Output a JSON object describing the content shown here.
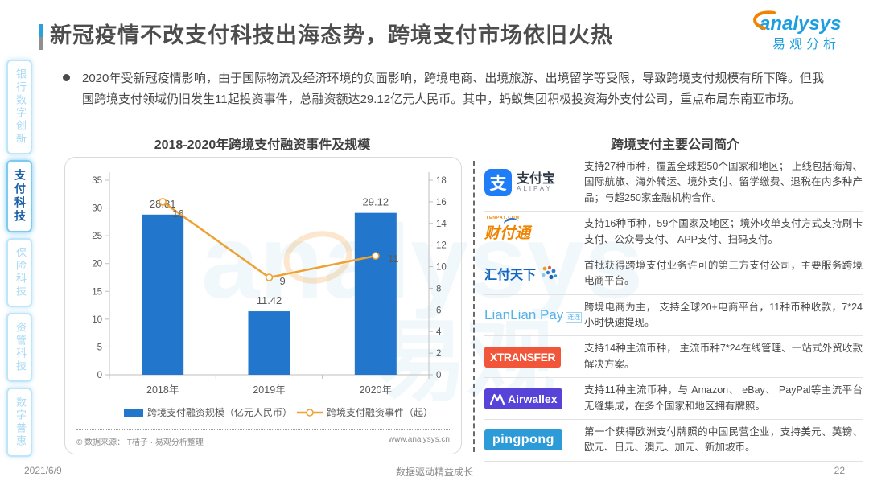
{
  "header": {
    "title": "新冠疫情不改支付科技出海态势，跨境支付市场依旧火热"
  },
  "brand": {
    "logo_text": "analysys",
    "logo_subtext": "易观分析"
  },
  "sidebar": {
    "items": [
      {
        "label": "银行数字创新",
        "active": false
      },
      {
        "label": "支付科技",
        "active": true
      },
      {
        "label": "保险科技",
        "active": false
      },
      {
        "label": "资管科技",
        "active": false
      },
      {
        "label": "数字普惠",
        "active": false
      }
    ]
  },
  "summary": {
    "bullet": "2020年受新冠疫情影响，由于国际物流及经济环境的负面影响，跨境电商、出境旅游、出境留学等受限，导致跨境支付规模有所下降。但我国跨境支付领域仍旧发生11起投资事件，总融资额达29.12亿元人民币。其中，蚂蚁集团积极投资海外支付公司，重点布局东南亚市场。"
  },
  "chart_data": {
    "type": "bar",
    "subtype": "combo bar+line, dual axis",
    "title": "2018-2020年跨境支付融资事件及规模",
    "categories": [
      "2018年",
      "2019年",
      "2020年"
    ],
    "series": [
      {
        "name": "跨境支付融资规模（亿元人民币）",
        "type": "bar",
        "axis": "left",
        "values": [
          28.81,
          11.42,
          29.12
        ],
        "color": "#2277cc"
      },
      {
        "name": "跨境支付融资事件（起）",
        "type": "line",
        "axis": "right",
        "values": [
          16,
          9,
          11
        ],
        "color": "#efa132"
      }
    ],
    "left_axis": {
      "min": 0,
      "max": 35,
      "step": 5
    },
    "right_axis": {
      "min": 0,
      "max": 18,
      "step": 2
    },
    "grid": false,
    "legend_position": "bottom",
    "source": "© 数据来源：IT桔子 · 易观分析整理",
    "source_url": "www.analysys.cn"
  },
  "companies": {
    "title": "跨境支付主要公司简介",
    "rows": [
      {
        "logo_cn": "支付宝",
        "logo_en": "ALIPAY",
        "glyph": "支",
        "desc": "支持27种币种，覆盖全球超50个国家和地区； 上线包括海淘、国际航旅、海外转运、境外支付、留学缴费、退税在内多种产品；与超250家金融机构合作。"
      },
      {
        "logo_text": "财付通",
        "logo_sub": "TENPAY.COM",
        "desc": "支持16种币种，59个国家及地区；境外收单支付方式支持刷卡支付、公众号支付、 APP支付、扫码支付。"
      },
      {
        "logo_text": "汇付天下",
        "desc": "首批获得跨境支付业务许可的第三方支付公司，主要服务跨境电商平台。"
      },
      {
        "logo_en": "LianLian Pay",
        "logo_cn": "连连",
        "desc": "跨境电商为主， 支持全球20+电商平台，11种币种收款，7*24 小时快速提现。"
      },
      {
        "logo_text": "XTRANSFER",
        "desc": "支持14种主流币种， 主流币种7*24在线管理、一站式外贸收款解决方案。"
      },
      {
        "logo_text": "Airwallex",
        "desc": "支持11种主流币种，与 Amazon、 eBay、 PayPal等主流平台无缝集成，在多个国家和地区拥有牌照。"
      },
      {
        "logo_text": "pingpong",
        "desc": "第一个获得欧洲支付牌照的中国民营企业，支持美元、英镑、欧元、日元、澳元、加元、新加坡币。"
      }
    ]
  },
  "watermark": {
    "text1": "analysys",
    "text2": "易观"
  },
  "footer": {
    "date": "2021/6/9",
    "center": "数据驱动精益成长",
    "page_number": "22"
  }
}
